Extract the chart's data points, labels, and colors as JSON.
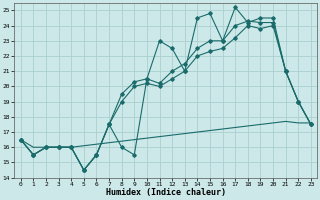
{
  "xlabel": "Humidex (Indice chaleur)",
  "bg_color": "#cde8e8",
  "grid_color": "#aacfcf",
  "line_color": "#1a6b6b",
  "xlim": [
    -0.5,
    23.5
  ],
  "ylim": [
    14,
    25.5
  ],
  "xticks": [
    0,
    1,
    2,
    3,
    4,
    5,
    6,
    7,
    8,
    9,
    10,
    11,
    12,
    13,
    14,
    15,
    16,
    17,
    18,
    19,
    20,
    21,
    22,
    23
  ],
  "yticks": [
    14,
    15,
    16,
    17,
    18,
    19,
    20,
    21,
    22,
    23,
    24,
    25
  ],
  "series": {
    "line_top": [
      16.5,
      15.5,
      16.0,
      16.0,
      16.0,
      14.5,
      15.5,
      17.5,
      16.0,
      15.5,
      20.5,
      23.0,
      22.5,
      21.0,
      24.5,
      24.8,
      23.0,
      25.2,
      24.2,
      24.5,
      24.5,
      21.0,
      19.0,
      17.5
    ],
    "line_mid1": [
      16.5,
      15.5,
      16.0,
      16.0,
      16.0,
      14.5,
      15.5,
      17.5,
      19.5,
      20.3,
      20.5,
      20.2,
      21.0,
      21.5,
      22.5,
      23.0,
      23.0,
      24.0,
      24.3,
      24.2,
      24.2,
      21.0,
      19.0,
      17.5
    ],
    "line_mid2": [
      16.5,
      15.5,
      16.0,
      16.0,
      16.0,
      14.5,
      15.5,
      17.5,
      19.0,
      20.0,
      20.2,
      20.0,
      20.5,
      21.0,
      22.0,
      22.3,
      22.5,
      23.2,
      24.0,
      23.8,
      24.0,
      21.0,
      19.0,
      17.5
    ],
    "line_base": [
      16.5,
      16.0,
      16.0,
      16.0,
      16.0,
      16.1,
      16.2,
      16.3,
      16.4,
      16.5,
      16.6,
      16.7,
      16.8,
      16.9,
      17.0,
      17.1,
      17.2,
      17.3,
      17.4,
      17.5,
      17.6,
      17.7,
      17.6,
      17.6
    ]
  }
}
